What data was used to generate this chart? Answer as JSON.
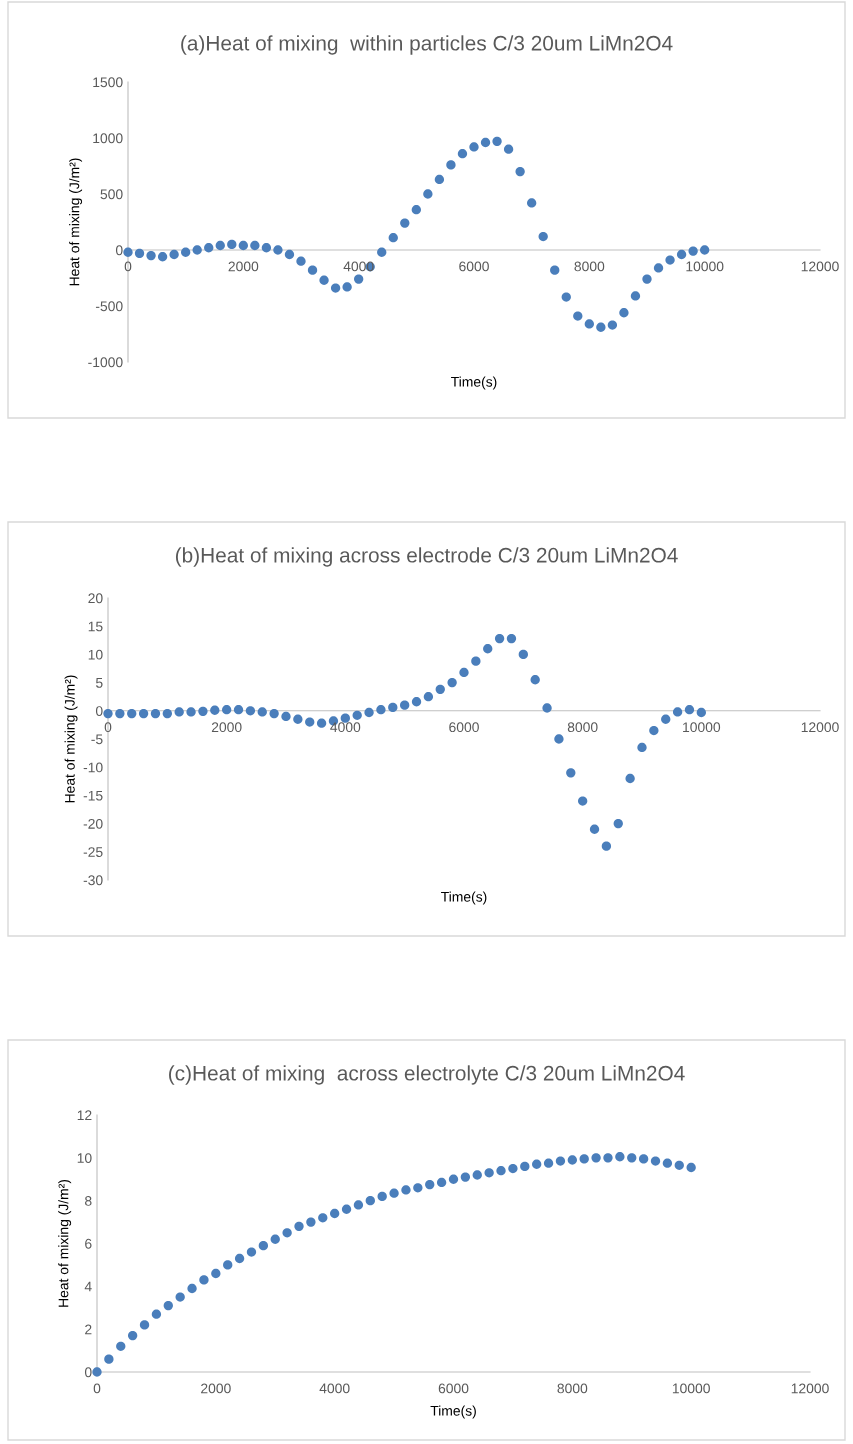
{
  "chart_data": [
    {
      "type": "scatter",
      "title": "(a)Heat of mixing  within particles C/3 20um LiMn2O4",
      "xlabel": "Time(s)",
      "ylabel": "Heat of mixing (J/m²)",
      "marker": "circle",
      "grid": false,
      "xlim": [
        0,
        12000
      ],
      "xticks": [
        0,
        2000,
        4000,
        6000,
        8000,
        10000,
        12000
      ],
      "ylim": [
        -1000,
        1500
      ],
      "yticks": [
        -1000,
        -500,
        0,
        500,
        1000,
        1500
      ],
      "series": [
        {
          "color": "#4a7ebb",
          "x": [
            0,
            200,
            400,
            600,
            800,
            1000,
            1200,
            1400,
            1600,
            1800,
            2000,
            2200,
            2400,
            2600,
            2800,
            3000,
            3200,
            3400,
            3600,
            3800,
            4000,
            4200,
            4400,
            4600,
            4800,
            5000,
            5200,
            5400,
            5600,
            5800,
            6000,
            6200,
            6400,
            6600,
            6800,
            7000,
            7200,
            7400,
            7600,
            7800,
            8000,
            8200,
            8400,
            8600,
            8800,
            9000,
            9200,
            9400,
            9600,
            9800,
            10000
          ],
          "values": [
            -20,
            -30,
            -50,
            -60,
            -40,
            -20,
            0,
            20,
            40,
            50,
            40,
            40,
            20,
            0,
            -40,
            -100,
            -180,
            -270,
            -340,
            -330,
            -260,
            -150,
            -20,
            110,
            240,
            360,
            500,
            630,
            760,
            860,
            920,
            960,
            970,
            900,
            700,
            420,
            120,
            -180,
            -420,
            -590,
            -660,
            -690,
            -670,
            -560,
            -410,
            -260,
            -160,
            -90,
            -40,
            -10,
            0
          ]
        }
      ]
    },
    {
      "type": "scatter",
      "title": "(b)Heat of mixing across electrode C/3 20um LiMn2O4",
      "xlabel": "Time(s)",
      "ylabel": "Heat of mixing (J/m²)",
      "marker": "circle",
      "grid": false,
      "xlim": [
        0,
        12000
      ],
      "xticks": [
        0,
        2000,
        4000,
        6000,
        8000,
        10000,
        12000
      ],
      "ylim": [
        -30,
        20
      ],
      "yticks": [
        -30,
        -25,
        -20,
        -15,
        -10,
        -5,
        0,
        5,
        10,
        15,
        20
      ],
      "series": [
        {
          "color": "#4a7ebb",
          "x": [
            0,
            200,
            400,
            600,
            800,
            1000,
            1200,
            1400,
            1600,
            1800,
            2000,
            2200,
            2400,
            2600,
            2800,
            3000,
            3200,
            3400,
            3600,
            3800,
            4000,
            4200,
            4400,
            4600,
            4800,
            5000,
            5200,
            5400,
            5600,
            5800,
            6000,
            6200,
            6400,
            6600,
            6800,
            7000,
            7200,
            7400,
            7600,
            7800,
            8000,
            8200,
            8400,
            8600,
            8800,
            9000,
            9200,
            9400,
            9600,
            9800,
            10000
          ],
          "values": [
            -0.5,
            -0.5,
            -0.5,
            -0.5,
            -0.5,
            -0.5,
            -0.2,
            -0.2,
            -0.1,
            0.1,
            0.2,
            0.2,
            0,
            -0.2,
            -0.5,
            -1,
            -1.5,
            -2,
            -2.2,
            -1.8,
            -1.3,
            -0.8,
            -0.3,
            0.2,
            0.6,
            1,
            1.6,
            2.5,
            3.8,
            5,
            6.8,
            8.8,
            11,
            12.8,
            12.8,
            10,
            5.5,
            0.5,
            -5,
            -11,
            -16,
            -21,
            -24,
            -20,
            -12,
            -6.5,
            -3.5,
            -1.5,
            -0.2,
            0.2,
            -0.3
          ]
        }
      ]
    },
    {
      "type": "scatter",
      "title": "(c)Heat of mixing  across electrolyte C/3 20um LiMn2O4",
      "xlabel": "Time(s)",
      "ylabel": "Heat of mixing (J/m²)",
      "marker": "circle",
      "grid": false,
      "xlim": [
        0,
        12000
      ],
      "xticks": [
        0,
        2000,
        4000,
        6000,
        8000,
        10000,
        12000
      ],
      "ylim": [
        0,
        12
      ],
      "yticks": [
        0,
        2,
        4,
        6,
        8,
        10,
        12
      ],
      "series": [
        {
          "color": "#4a7ebb",
          "x": [
            0,
            200,
            400,
            600,
            800,
            1000,
            1200,
            1400,
            1600,
            1800,
            2000,
            2200,
            2400,
            2600,
            2800,
            3000,
            3200,
            3400,
            3600,
            3800,
            4000,
            4200,
            4400,
            4600,
            4800,
            5000,
            5200,
            5400,
            5600,
            5800,
            6000,
            6200,
            6400,
            6600,
            6800,
            7000,
            7200,
            7400,
            7600,
            7800,
            8000,
            8200,
            8400,
            8600,
            8800,
            9000,
            9200,
            9400,
            9600,
            9800,
            10000
          ],
          "values": [
            0,
            0.6,
            1.2,
            1.7,
            2.2,
            2.7,
            3.1,
            3.5,
            3.9,
            4.3,
            4.6,
            5.0,
            5.3,
            5.6,
            5.9,
            6.2,
            6.5,
            6.8,
            7.0,
            7.2,
            7.4,
            7.6,
            7.8,
            8.0,
            8.2,
            8.35,
            8.5,
            8.6,
            8.75,
            8.85,
            9.0,
            9.1,
            9.2,
            9.3,
            9.4,
            9.5,
            9.6,
            9.7,
            9.75,
            9.85,
            9.9,
            9.95,
            10.0,
            10.0,
            10.05,
            10.0,
            9.95,
            9.85,
            9.75,
            9.65,
            9.55
          ]
        }
      ]
    }
  ]
}
